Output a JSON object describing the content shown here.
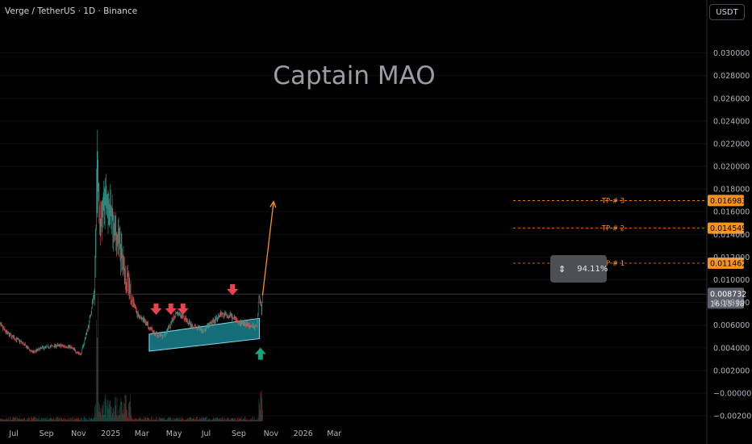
{
  "header": {
    "symbol": "Verge / TetherUS · 1D · Binance",
    "currency_button": "USDT",
    "watermark": "Captain MAO"
  },
  "measure_box": {
    "label": "94.11%"
  },
  "colors": {
    "up": "#26a69a",
    "down": "#ef5350",
    "target_line": "#f7931a",
    "channel_fill": "#26c6da",
    "arrow_down": "#e8434f",
    "arrow_up": "#1aa37a",
    "price_label_bg": "#5d606b"
  },
  "chart_data": {
    "type": "candlestick",
    "x_tick_labels": [
      "Jul",
      "Sep",
      "Nov",
      "2025",
      "Mar",
      "May",
      "Jul",
      "Sep",
      "Nov",
      "2026",
      "Mar"
    ],
    "y_tick_labels": [
      "0.030000",
      "0.028000",
      "0.026000",
      "0.024000",
      "0.022000",
      "0.020000",
      "0.018000",
      "0.016000",
      "0.014000",
      "0.012000",
      "0.010000",
      "0.008000",
      "0.006000",
      "0.004000",
      "0.002000",
      "−0.000000",
      "−0.002000"
    ],
    "ylim": [
      -0.0021,
      0.0315
    ],
    "current_price": "0.008732",
    "countdown": "16:15:38",
    "targets": [
      {
        "label": "TP # 1",
        "value": "0.011462",
        "y": 0.011462
      },
      {
        "label": "TP # 2",
        "value": "0.014549",
        "y": 0.014549
      },
      {
        "label": "TP # 3",
        "value": "0.016983",
        "y": 0.016983
      }
    ],
    "target_price": 0.016983,
    "channel": {
      "start": "2025-03-15",
      "end": "2025-10-10",
      "lower_start": 0.0037,
      "lower_end": 0.0048,
      "upper_start": 0.0052,
      "upper_end": 0.0066
    },
    "down_markers": [
      "2025-03-28",
      "2025-04-25",
      "2025-05-18",
      "2025-08-20"
    ],
    "up_marker": {
      "date": "2025-10-12",
      "value": 0.0033
    },
    "projection": {
      "from_date": "2025-10-16",
      "from_value": 0.0086,
      "to_date": "2025-11-06",
      "to_value": 0.0169
    },
    "price_path": [
      [
        "2024-06-01",
        0.0062
      ],
      [
        "2024-06-20",
        0.0052
      ],
      [
        "2024-07-15",
        0.0045
      ],
      [
        "2024-08-05",
        0.0036
      ],
      [
        "2024-08-25",
        0.004
      ],
      [
        "2024-09-20",
        0.0042
      ],
      [
        "2024-10-15",
        0.0041
      ],
      [
        "2024-11-05",
        0.0034
      ],
      [
        "2024-11-20",
        0.006
      ],
      [
        "2024-12-01",
        0.009
      ],
      [
        "2024-12-06",
        0.02
      ],
      [
        "2024-12-12",
        0.015
      ],
      [
        "2024-12-22",
        0.017
      ],
      [
        "2025-01-05",
        0.015
      ],
      [
        "2025-01-20",
        0.0125
      ],
      [
        "2025-02-05",
        0.009
      ],
      [
        "2025-02-20",
        0.007
      ],
      [
        "2025-03-10",
        0.0062
      ],
      [
        "2025-03-25",
        0.0052
      ],
      [
        "2025-04-10",
        0.005
      ],
      [
        "2025-04-25",
        0.006
      ],
      [
        "2025-05-05",
        0.0072
      ],
      [
        "2025-05-20",
        0.0066
      ],
      [
        "2025-06-10",
        0.0058
      ],
      [
        "2025-06-25",
        0.0055
      ],
      [
        "2025-07-15",
        0.0063
      ],
      [
        "2025-07-28",
        0.007
      ],
      [
        "2025-08-15",
        0.0068
      ],
      [
        "2025-09-01",
        0.0062
      ],
      [
        "2025-09-20",
        0.006
      ],
      [
        "2025-10-05",
        0.0058
      ],
      [
        "2025-10-09",
        0.0085
      ],
      [
        "2025-10-14",
        0.0073
      ],
      [
        "2025-10-16",
        0.0087
      ]
    ]
  }
}
